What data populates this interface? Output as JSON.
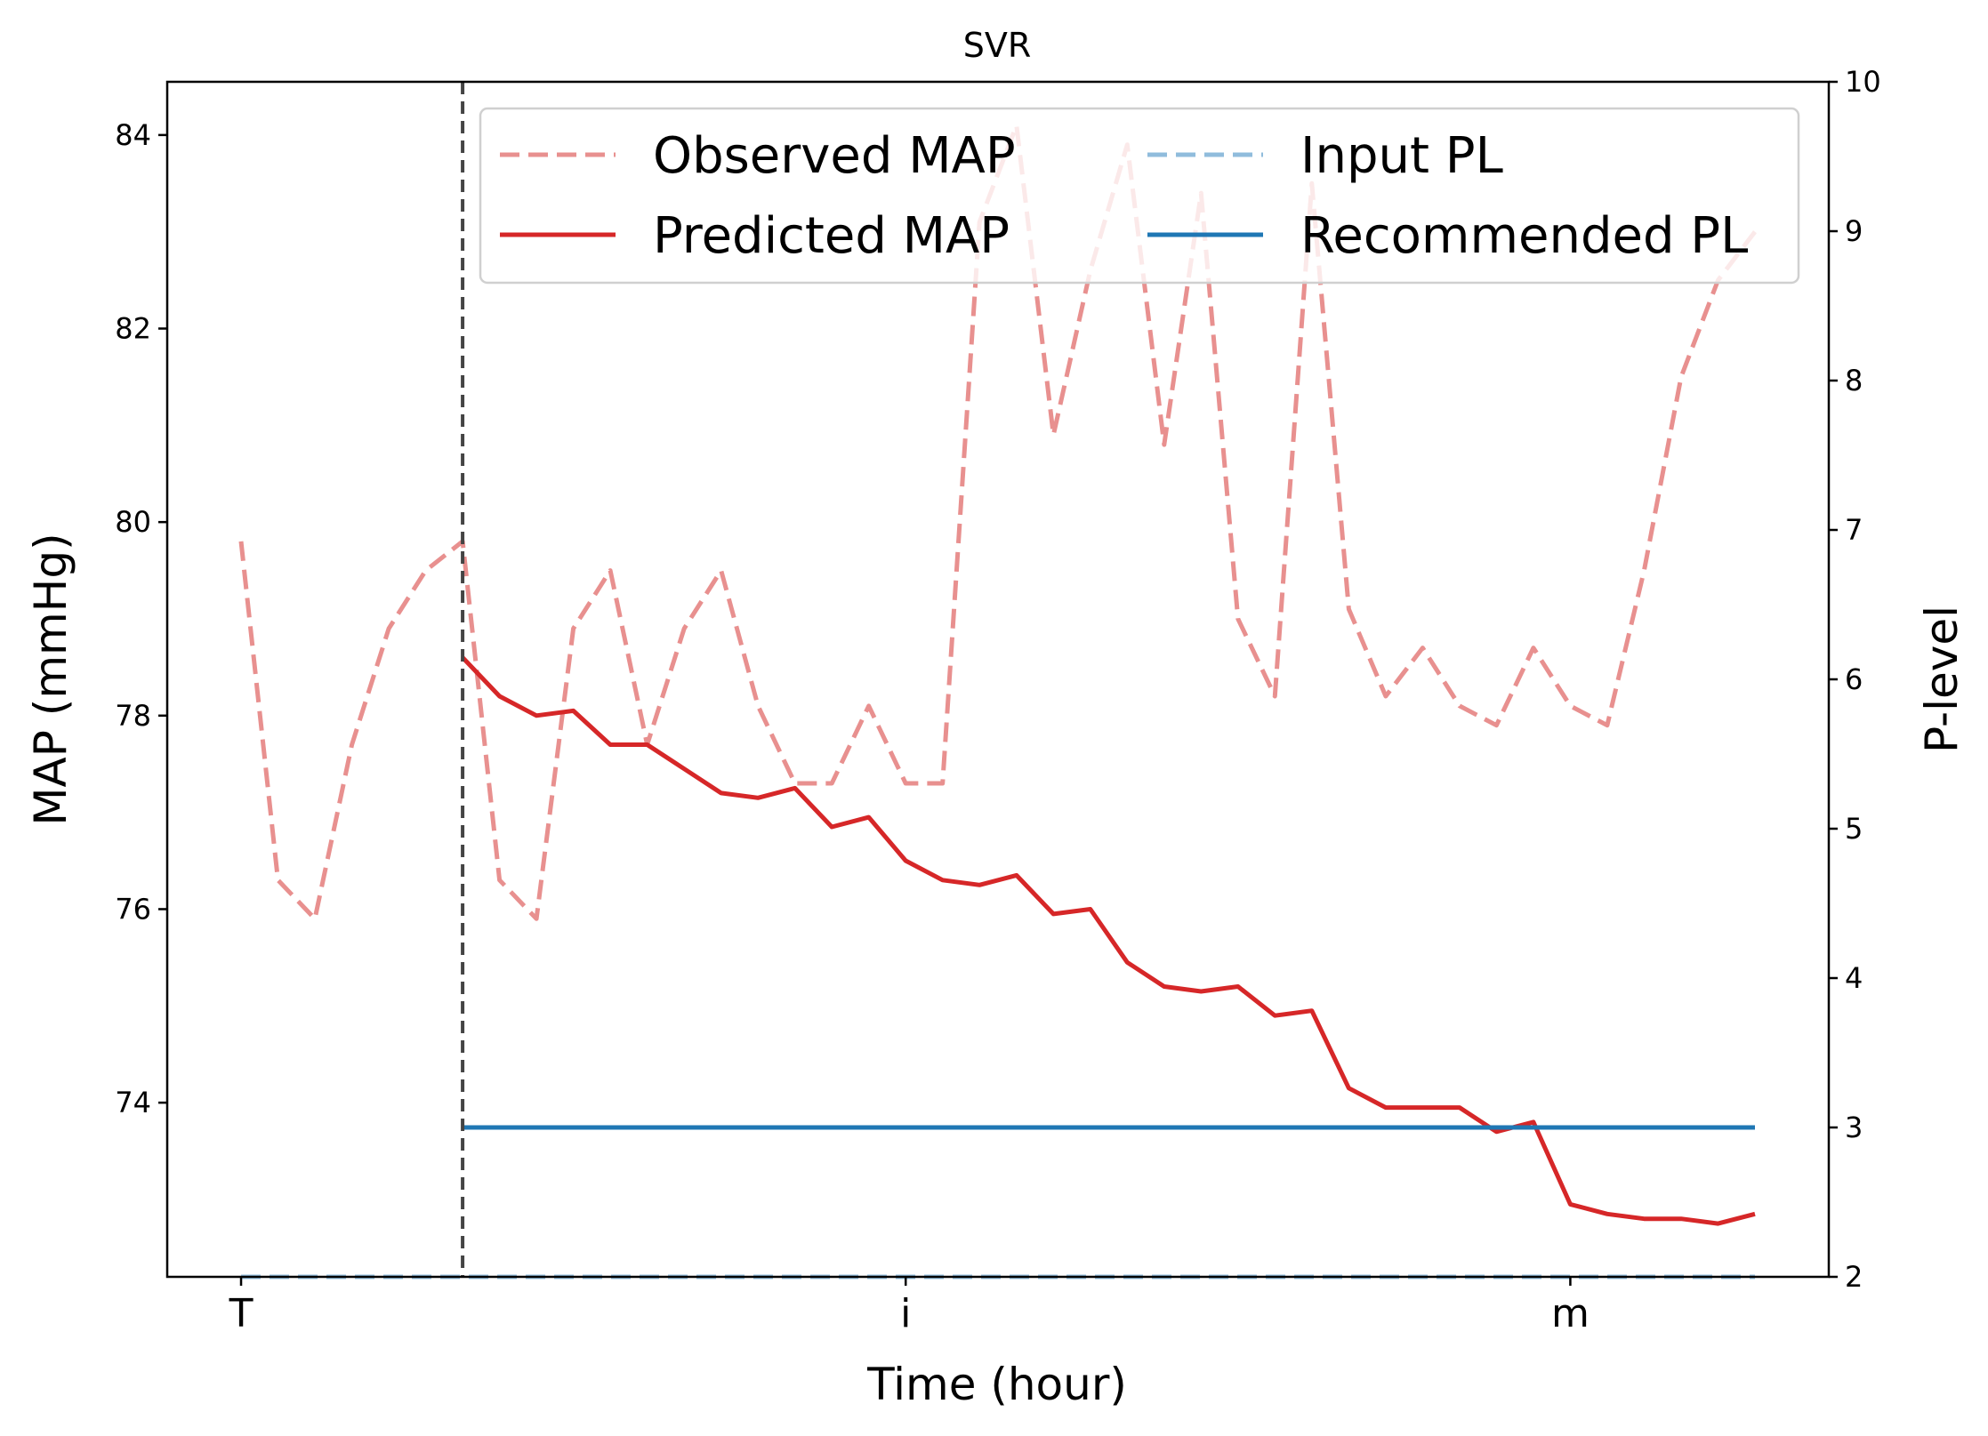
{
  "chart_data": {
    "type": "line",
    "title": "SVR",
    "xlabel": "Time (hour)",
    "ylabel": "MAP (mmHg)",
    "y2label": "P-level",
    "x_ticks": [
      {
        "x": 0,
        "label": "T"
      },
      {
        "x": 18,
        "label": "i"
      },
      {
        "x": 36,
        "label": "m"
      }
    ],
    "xlim": [
      -2,
      43
    ],
    "ylim": [
      72.2,
      84.55
    ],
    "y_ticks": [
      74,
      76,
      78,
      80,
      82,
      84
    ],
    "y2lim": [
      2,
      10
    ],
    "y2_ticks": [
      2,
      3,
      4,
      5,
      6,
      7,
      8,
      9,
      10
    ],
    "grid": false,
    "legend_position": "top-right",
    "cutoff_x": 6,
    "series": [
      {
        "name": "Observed MAP",
        "axis": "left",
        "style": "dashed",
        "color": "#e8908f",
        "x": [
          0,
          1,
          2,
          3,
          4,
          5,
          6,
          7,
          8,
          9,
          10,
          11,
          12,
          13,
          14,
          15,
          16,
          17,
          18,
          19,
          20,
          21,
          22,
          23,
          24,
          25,
          26,
          27,
          28,
          29,
          30,
          31,
          32,
          33,
          34,
          35,
          36,
          37,
          38,
          39,
          40,
          41
        ],
        "y": [
          79.8,
          76.3,
          75.9,
          77.7,
          78.9,
          79.5,
          79.8,
          76.3,
          75.9,
          78.9,
          79.5,
          77.7,
          78.9,
          79.5,
          78.1,
          77.3,
          77.3,
          78.1,
          77.3,
          77.3,
          83.1,
          84.1,
          80.9,
          82.6,
          83.9,
          80.8,
          83.4,
          79.0,
          78.2,
          83.5,
          79.1,
          78.2,
          78.7,
          78.1,
          77.9,
          78.7,
          78.1,
          77.9,
          79.5,
          81.5,
          82.5,
          83.0
        ]
      },
      {
        "name": "Predicted MAP",
        "axis": "left",
        "style": "solid",
        "color": "#d62728",
        "x": [
          6,
          7,
          8,
          9,
          10,
          11,
          12,
          13,
          14,
          15,
          16,
          17,
          18,
          19,
          20,
          21,
          22,
          23,
          24,
          25,
          26,
          27,
          28,
          29,
          30,
          31,
          32,
          33,
          34,
          35,
          36,
          37,
          38,
          39,
          40,
          41
        ],
        "y": [
          78.6,
          78.2,
          78.0,
          78.05,
          77.7,
          77.7,
          77.45,
          77.2,
          77.15,
          77.25,
          76.85,
          76.95,
          76.5,
          76.3,
          76.25,
          76.35,
          75.95,
          76.0,
          75.45,
          75.2,
          75.15,
          75.2,
          74.9,
          74.95,
          74.15,
          73.95,
          73.95,
          73.95,
          73.7,
          73.8,
          72.95,
          72.85,
          72.8,
          72.8,
          72.75,
          72.85
        ]
      },
      {
        "name": "Input PL",
        "axis": "right",
        "style": "dashed",
        "color": "#90bcdc",
        "x": [
          0,
          41
        ],
        "y": [
          2,
          2
        ]
      },
      {
        "name": "Recommended PL",
        "axis": "right",
        "style": "solid",
        "color": "#1f77b4",
        "x": [
          6,
          41
        ],
        "y": [
          3,
          3
        ]
      }
    ]
  }
}
